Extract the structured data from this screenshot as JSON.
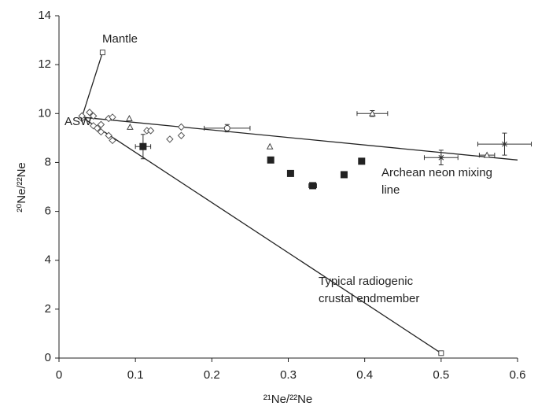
{
  "chart_data": {
    "type": "scatter",
    "x_label": "²¹Ne/²²Ne",
    "y_label": "²⁰Ne/²²Ne",
    "xlim": [
      0,
      0.6
    ],
    "ylim": [
      0,
      14
    ],
    "xticks": [
      0,
      0.1,
      0.2,
      0.3,
      0.4,
      0.5,
      0.6
    ],
    "yticks": [
      0,
      2,
      4,
      6,
      8,
      10,
      12,
      14
    ],
    "grid": false,
    "lines": [
      {
        "x": [
          0.03,
          0.057
        ],
        "y": [
          9.85,
          12.5
        ],
        "color": "#222"
      },
      {
        "x": [
          0.03,
          0.5
        ],
        "y": [
          9.85,
          0.2
        ],
        "color": "#222"
      },
      {
        "x": [
          0.03,
          0.6
        ],
        "y": [
          9.85,
          8.1
        ],
        "color": "#222"
      }
    ],
    "series": [
      {
        "marker": "square-open",
        "color": "#444",
        "x": [
          0.057,
          0.5
        ],
        "y": [
          12.5,
          0.2
        ],
        "xerr": [
          null,
          null
        ],
        "yerr": [
          null,
          null
        ]
      },
      {
        "marker": "diamond",
        "color": "#555",
        "x": [
          0.03,
          0.03,
          0.04,
          0.045,
          0.045,
          0.05,
          0.055,
          0.055,
          0.065,
          0.07,
          0.065,
          0.07,
          0.115,
          0.12,
          0.145,
          0.16,
          0.16
        ],
        "y": [
          9.8,
          9.9,
          10.05,
          9.9,
          9.5,
          9.4,
          9.55,
          9.25,
          9.8,
          9.85,
          9.1,
          8.9,
          9.3,
          9.3,
          8.95,
          9.45,
          9.1
        ],
        "xerr": [
          null,
          null,
          null,
          null,
          null,
          null,
          null,
          null,
          null,
          null,
          null,
          null,
          null,
          null,
          null,
          null,
          null
        ],
        "yerr": [
          null,
          null,
          null,
          null,
          null,
          null,
          null,
          null,
          null,
          null,
          null,
          null,
          null,
          null,
          null,
          null,
          null
        ]
      },
      {
        "marker": "square-filled",
        "color": "#222",
        "x": [
          0.11,
          0.277,
          0.303,
          0.332,
          0.373,
          0.396
        ],
        "y": [
          8.65,
          8.1,
          7.55,
          7.05,
          7.5,
          8.05
        ],
        "xerr": [
          0.01,
          null,
          null,
          0.005,
          null,
          null
        ],
        "yerr": [
          0.5,
          null,
          null,
          null,
          null,
          null
        ]
      },
      {
        "marker": "triangle",
        "color": "#444",
        "x": [
          0.092,
          0.093,
          0.276,
          0.41,
          0.56
        ],
        "y": [
          9.8,
          9.45,
          8.65,
          10.0,
          8.3
        ],
        "xerr": [
          null,
          null,
          null,
          0.02,
          0.01
        ],
        "yerr": [
          null,
          null,
          null,
          0.12,
          null
        ]
      },
      {
        "marker": "circle",
        "color": "#444",
        "x": [
          0.22
        ],
        "y": [
          9.4
        ],
        "xerr": [
          0.03
        ],
        "yerr": [
          0.15
        ]
      },
      {
        "marker": "asterisk",
        "color": "#333",
        "x": [
          0.5,
          0.583
        ],
        "y": [
          8.2,
          8.75
        ],
        "xerr": [
          0.022,
          0.035
        ],
        "yerr": [
          0.3,
          0.45
        ]
      }
    ],
    "annotations": [
      {
        "lines": [
          "Mantle"
        ]
      },
      {
        "lines": [
          "ASW"
        ]
      },
      {
        "lines": [
          "Archean neon mixing",
          "line"
        ]
      },
      {
        "lines": [
          "Typical radiogenic",
          "crustal endmember"
        ]
      }
    ]
  }
}
